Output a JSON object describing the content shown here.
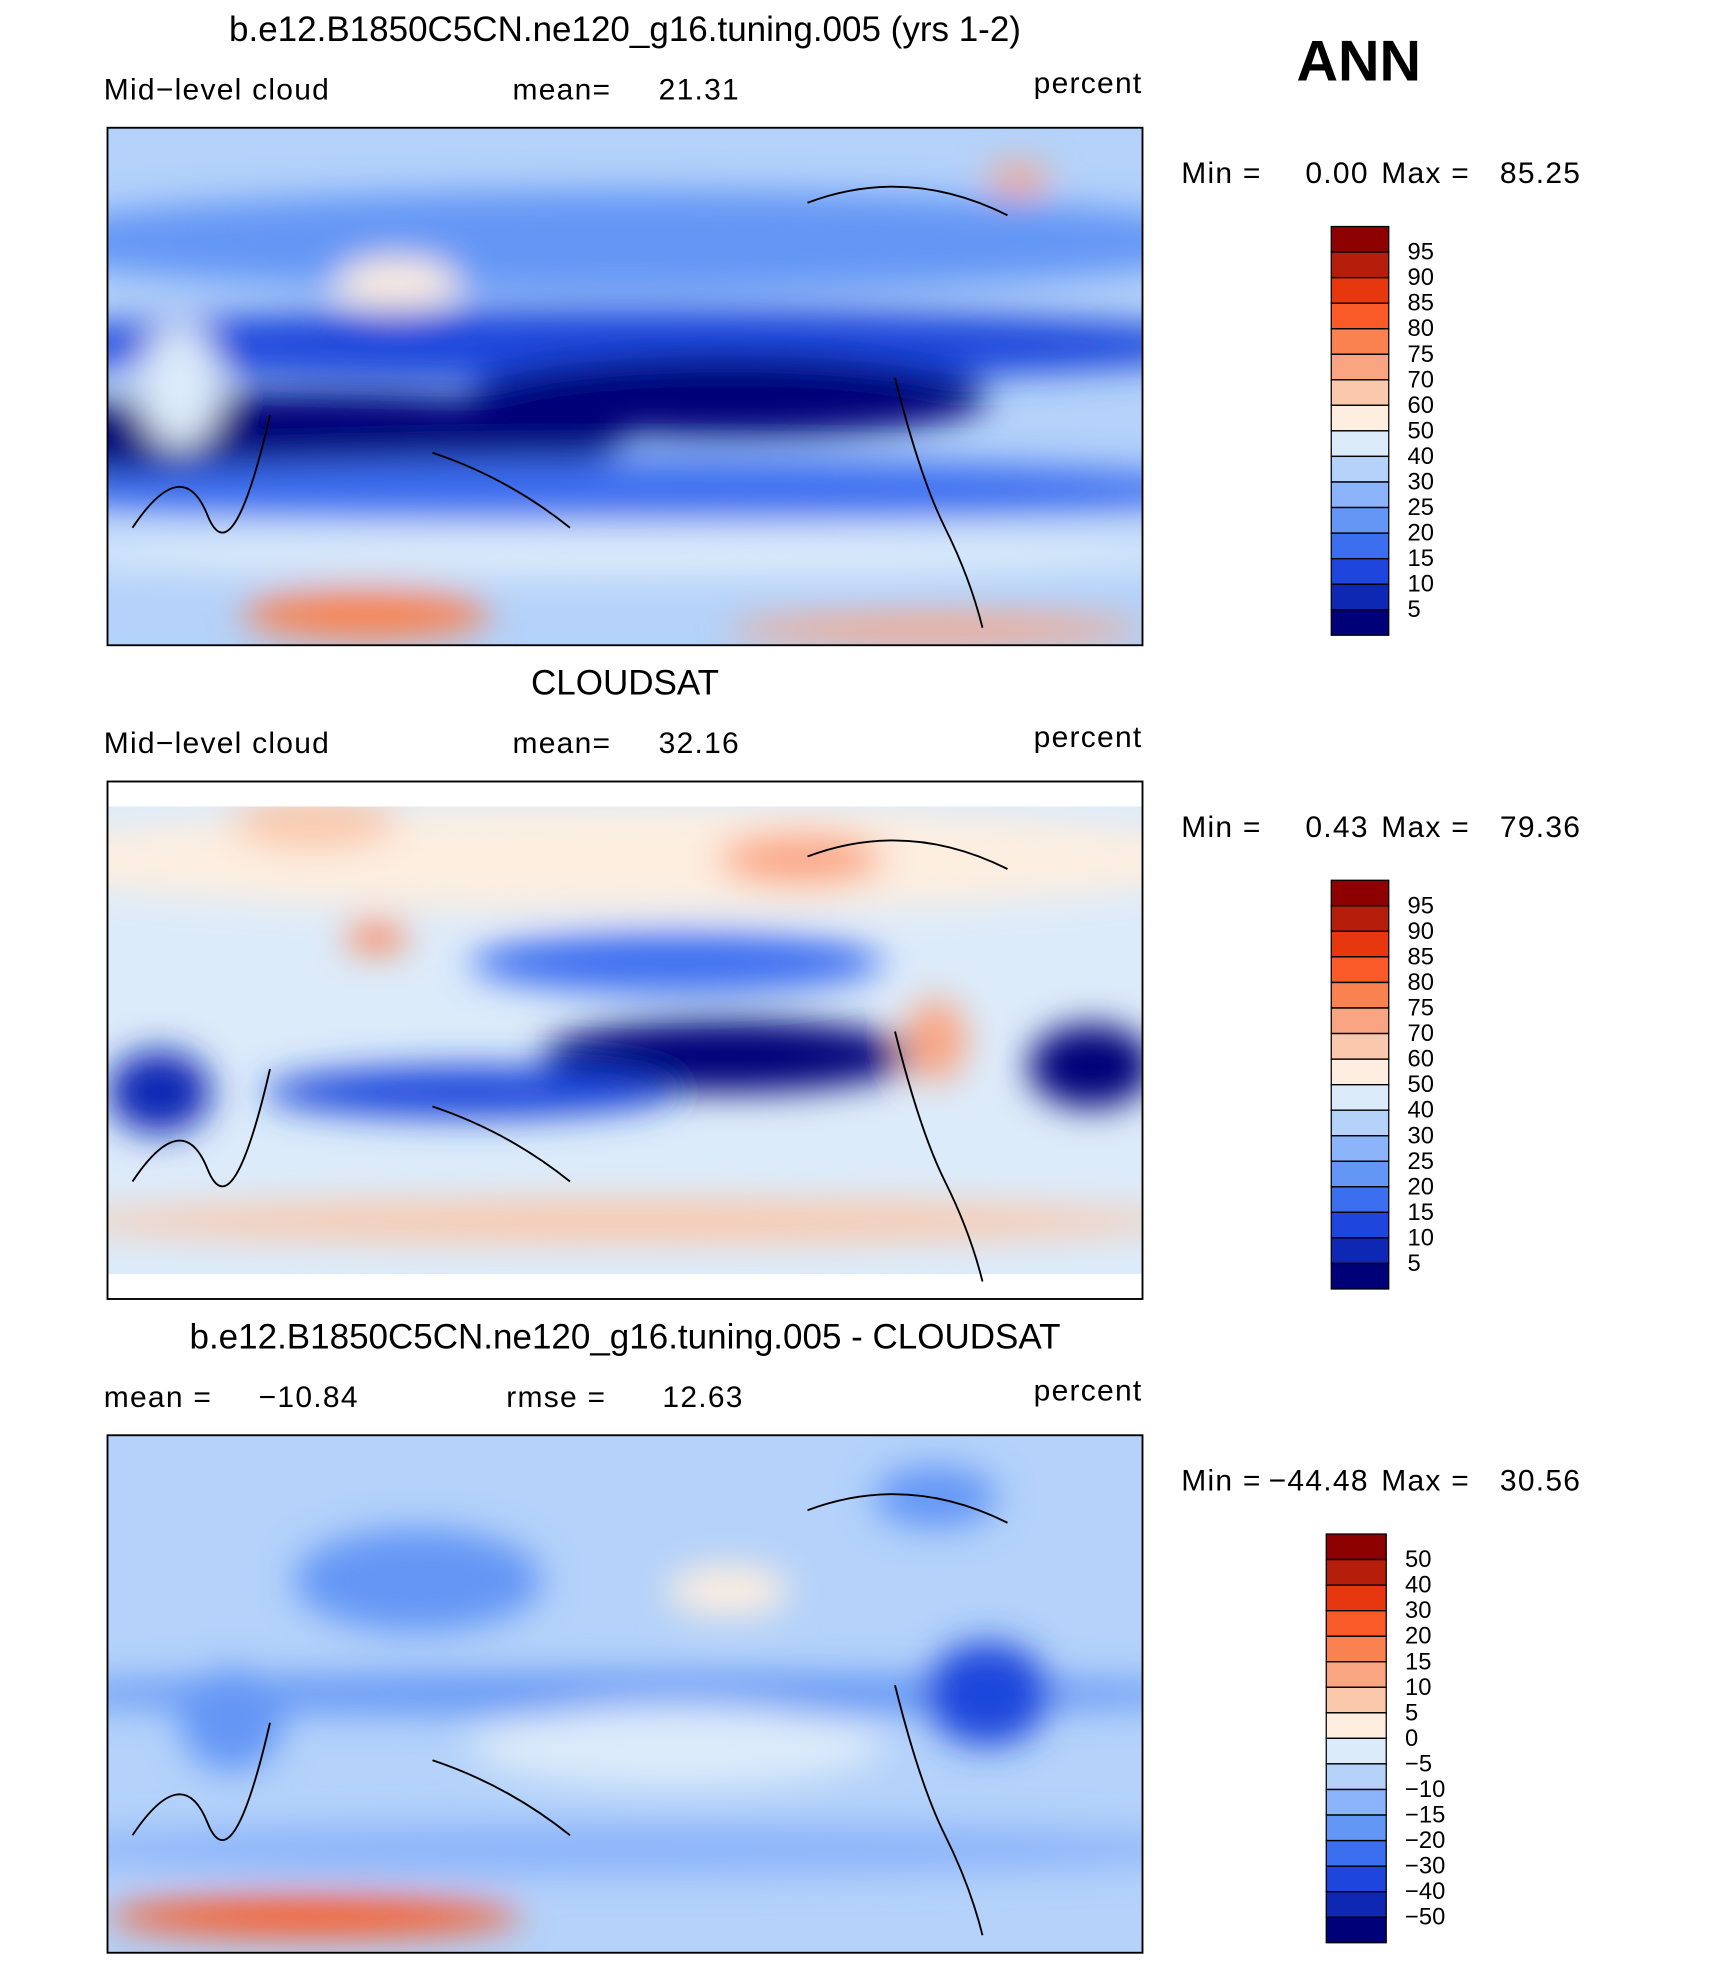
{
  "header": {
    "season": "ANN"
  },
  "panels": [
    {
      "title": "b.e12.B1850C5CN.ne120_g16.tuning.005 (yrs 1-2)",
      "subtitle": "Mid−level cloud",
      "stats": [
        {
          "name": "mean=",
          "value": 21.31
        }
      ],
      "units": "percent",
      "range": [
        {
          "name": "Min =",
          "value": {
            "value": 0,
            "label": "0.00"
          }
        },
        {
          "name": "Max =",
          "value": 85.25
        }
      ],
      "colorbar": {
        "levels": [
          95,
          90,
          85,
          80,
          75,
          70,
          60,
          50,
          40,
          30,
          25,
          20,
          15,
          10,
          5
        ],
        "colors": [
          "#8c0000",
          "#b41e0a",
          "#e6370f",
          "#fa5a28",
          "#fa8250",
          "#faa582",
          "#fac8aa",
          "#fdeee0",
          "#dcebfa",
          "#b4d2fa",
          "#8cb4fa",
          "#6496f5",
          "#3c6ef0",
          "#1e46dc",
          "#0f28b4",
          "#000078"
        ]
      }
    },
    {
      "title": "CLOUDSAT",
      "subtitle": "Mid−level cloud",
      "stats": [
        {
          "name": "mean=",
          "value": 32.16
        }
      ],
      "units": "percent",
      "range": [
        {
          "name": "Min =",
          "value": 0.43
        },
        {
          "name": "Max =",
          "value": 79.36
        }
      ],
      "colorbar": {
        "levels": [
          95,
          90,
          85,
          80,
          75,
          70,
          60,
          50,
          40,
          30,
          25,
          20,
          15,
          10,
          5
        ],
        "colors": [
          "#8c0000",
          "#b41e0a",
          "#e6370f",
          "#fa5a28",
          "#fa8250",
          "#faa582",
          "#fac8aa",
          "#fdeee0",
          "#dcebfa",
          "#b4d2fa",
          "#8cb4fa",
          "#6496f5",
          "#3c6ef0",
          "#1e46dc",
          "#0f28b4",
          "#000078"
        ]
      }
    },
    {
      "title": "b.e12.B1850C5CN.ne120_g16.tuning.005 - CLOUDSAT",
      "stats": [
        {
          "name": "mean =",
          "value": {
            "value": -10.84,
            "label": "−10.84"
          }
        },
        {
          "name": "rmse =",
          "value": 12.63
        }
      ],
      "units": "percent",
      "range": [
        {
          "name": "Min =",
          "value": {
            "value": -44.48,
            "label": "−44.48"
          }
        },
        {
          "name": "Max =",
          "value": 30.56
        }
      ],
      "colorbar": {
        "levels": [
          50,
          40,
          30,
          20,
          15,
          10,
          5,
          0,
          {
            "value": -5,
            "label": "−5"
          },
          {
            "value": -10,
            "label": "−10"
          },
          {
            "value": -15,
            "label": "−15"
          },
          {
            "value": -20,
            "label": "−20"
          },
          {
            "value": -30,
            "label": "−30"
          },
          {
            "value": -40,
            "label": "−40"
          },
          {
            "value": -50,
            "label": "−50"
          }
        ],
        "colors": [
          "#8c0000",
          "#b41e0a",
          "#e6370f",
          "#fa5a28",
          "#fa8250",
          "#faa582",
          "#fac8aa",
          "#fdeee0",
          "#dcebfa",
          "#b4d2fa",
          "#8cb4fa",
          "#6496f5",
          "#3c6ef0",
          "#1e46dc",
          "#0f28b4",
          "#000078"
        ]
      }
    }
  ]
}
